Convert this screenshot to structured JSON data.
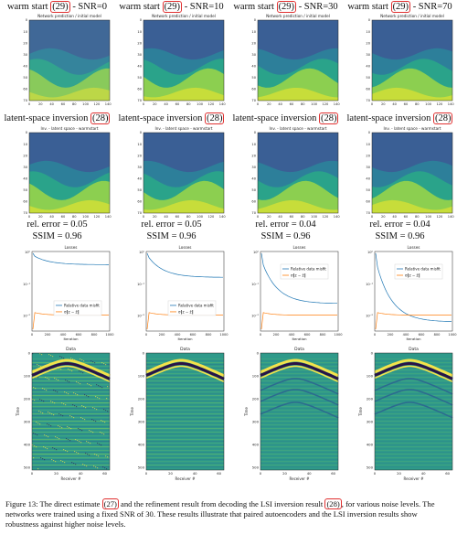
{
  "columns": [
    {
      "heading": {
        "text": "warm start",
        "ref": "(29)",
        "snr": "- SNR=0"
      },
      "rel_error": "rel. error = 0.05",
      "ssim": "SSIM = 0.96"
    },
    {
      "heading": {
        "text": "warm start",
        "ref": "(29)",
        "snr": "- SNR=10"
      },
      "rel_error": "rel. error = 0.05",
      "ssim": "SSIM = 0.96"
    },
    {
      "heading": {
        "text": "warm start",
        "ref": "(29)",
        "snr": "- SNR=30"
      },
      "rel_error": "rel. error = 0.04",
      "ssim": "SSIM = 0.96"
    },
    {
      "heading": {
        "text": "warm start",
        "ref": "(29)",
        "snr": "- SNR=70"
      },
      "rel_error": "rel. error = 0.04",
      "ssim": "SSIM = 0.96"
    }
  ],
  "common": {
    "inversion_heading": {
      "text": "latent-space inversion",
      "ref": "(28)"
    },
    "prediction_title": "Network prediction / initial model",
    "inversion_title": "Inv. - latent space - warmstart",
    "model_xticks": [
      "0",
      "20",
      "40",
      "60",
      "80",
      "100",
      "120",
      "140"
    ],
    "model_yticks": [
      "0",
      "10",
      "20",
      "30",
      "40",
      "50",
      "60",
      "70"
    ],
    "losses": {
      "title": "Losses",
      "xlabel": "Iteration",
      "xticks": [
        "0",
        "200",
        "400",
        "600",
        "800",
        "1000"
      ],
      "yticks": [
        "10⁰",
        "10⁻¹",
        "10⁻²"
      ],
      "legend": [
        "Relative data misfit",
        "σ‖z − z̄‖"
      ]
    },
    "data_plot": {
      "title": "Data",
      "xlabel": "Receiver #",
      "ylabel": "Time",
      "xticks": [
        "0",
        "20",
        "40",
        "60"
      ],
      "yticks": [
        "0",
        "100",
        "200",
        "300",
        "400",
        "500"
      ]
    }
  },
  "caption": [
    "Figure 13: The direct estimate ",
    "(27)",
    " and the refinement result from decoding the LSI inversion result ",
    "(28)",
    ", for various noise levels. The networks were trained using a fixed SNR of 30. These results illustrate that paired autoencoders and the LSI inversion results show robustness against higher noise levels."
  ]
}
